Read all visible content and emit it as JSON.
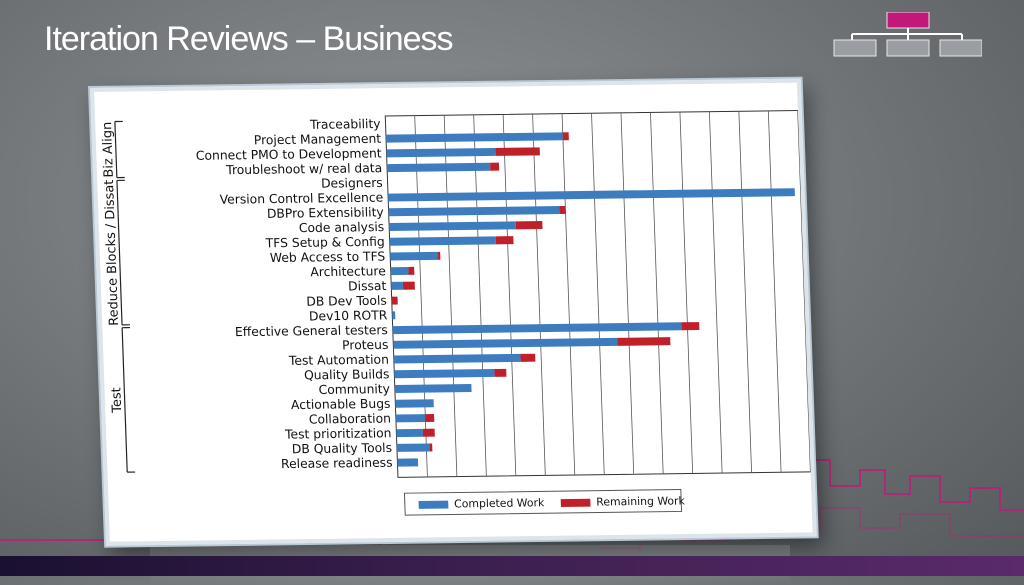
{
  "slide": {
    "title": "Iteration Reviews – Business"
  },
  "icons": {
    "org_chart": "org-chart-icon"
  },
  "colors": {
    "completed": "#3d7dbf",
    "remaining": "#c0202a",
    "accent": "#c2187a"
  },
  "chart_data": {
    "type": "bar",
    "orientation": "horizontal",
    "stacked": true,
    "title": "",
    "xlabel": "",
    "ylabel": "",
    "categories": [
      "Traceability",
      "Project Management",
      "Connect PMO to Development",
      "Troubleshoot w/ real data",
      "Designers",
      "Version Control Excellence",
      "DBPro Extensibility",
      "Code analysis",
      "TFS Setup & Config",
      "Web Access to TFS",
      "Architecture",
      "Dissat",
      "DB Dev Tools",
      "Dev10 ROTR",
      "Effective General testers",
      "Proteus",
      "Test Automation",
      "Quality Builds",
      "Community",
      "Actionable Bugs",
      "Collaboration",
      "Test prioritization",
      "DB Quality Tools",
      "Release readiness"
    ],
    "series": [
      {
        "name": "Completed Work",
        "values": [
          0.0,
          6.0,
          3.7,
          3.5,
          0.0,
          13.8,
          5.8,
          4.3,
          3.6,
          1.6,
          0.6,
          0.4,
          0.0,
          0.1,
          9.8,
          7.6,
          4.3,
          3.4,
          2.6,
          1.3,
          1.0,
          0.9,
          1.1,
          0.7
        ]
      },
      {
        "name": "Remaining Work",
        "values": [
          0.0,
          0.2,
          1.5,
          0.3,
          0.0,
          0.0,
          0.2,
          0.9,
          0.6,
          0.1,
          0.2,
          0.4,
          0.2,
          0.0,
          0.6,
          1.8,
          0.5,
          0.4,
          0.0,
          0.0,
          0.3,
          0.4,
          0.1,
          0.0
        ]
      }
    ],
    "xlim": [
      0,
      14
    ],
    "grid": true,
    "legend": {
      "placement": "bottom",
      "entries": [
        "Completed Work",
        "Remaining Work"
      ]
    },
    "groups": [
      {
        "label": "Biz Align",
        "start": 0,
        "end": 3
      },
      {
        "label": "Reduce Blocks / Dissat",
        "start": 4,
        "end": 13
      },
      {
        "label": "Test",
        "start": 14,
        "end": 23
      }
    ]
  }
}
